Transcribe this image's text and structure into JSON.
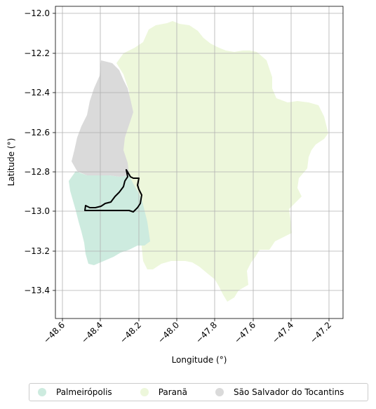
{
  "axes": {
    "xlabel": "Longitude (°)",
    "ylabel": "Latitude (°)",
    "xticks": [
      "−48.6",
      "−48.4",
      "−48.2",
      "−48.0",
      "−47.8",
      "−47.6",
      "−47.4",
      "−47.2"
    ],
    "yticks": [
      "−12.0",
      "−12.2",
      "−12.4",
      "−12.6",
      "−12.8",
      "−13.0",
      "−13.2",
      "−13.4"
    ],
    "grid": true
  },
  "legend": {
    "placement": "bottom-center",
    "items": [
      {
        "label": "Palmeirópolis",
        "color": "#cdebdf"
      },
      {
        "label": "Paranã",
        "color": "#edf7db"
      },
      {
        "label": "São Salvador do Tocantins",
        "color": "#dadada"
      }
    ]
  },
  "map": {
    "colors": {
      "palmeiropolis": "#cdebdf",
      "parana": "#edf7db",
      "sao_salvador": "#dadada",
      "outline": "#000000",
      "grid": "#b0b0b0"
    }
  }
}
